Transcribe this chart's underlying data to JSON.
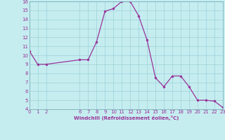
{
  "x": [
    0,
    1,
    2,
    6,
    7,
    8,
    9,
    10,
    11,
    12,
    13,
    14,
    15,
    16,
    17,
    18,
    19,
    20,
    21,
    22,
    23
  ],
  "y": [
    10.5,
    9.0,
    9.0,
    9.5,
    9.5,
    11.5,
    14.9,
    15.2,
    16.0,
    16.0,
    14.4,
    11.7,
    7.5,
    6.5,
    7.7,
    7.7,
    6.5,
    5.0,
    5.0,
    4.9,
    4.2
  ],
  "line_color": "#993399",
  "marker": "o",
  "marker_size": 2,
  "bg_color": "#c5edf0",
  "grid_color": "#9ed0d8",
  "xlabel": "Windchill (Refroidissement éolien,°C)",
  "xlabel_color": "#993399",
  "tick_color": "#993399",
  "label_fontsize": 5,
  "xlabel_fontsize": 5,
  "ylim": [
    4,
    16
  ],
  "xlim": [
    0,
    23
  ],
  "yticks": [
    4,
    5,
    6,
    7,
    8,
    9,
    10,
    11,
    12,
    13,
    14,
    15,
    16
  ],
  "xticks": [
    0,
    1,
    2,
    6,
    7,
    8,
    9,
    10,
    11,
    12,
    13,
    14,
    15,
    16,
    17,
    18,
    19,
    20,
    21,
    22,
    23
  ]
}
